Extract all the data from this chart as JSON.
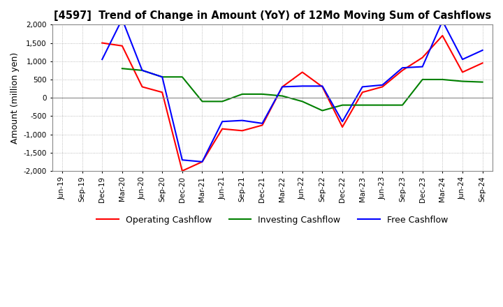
{
  "title": "[4597]  Trend of Change in Amount (YoY) of 12Mo Moving Sum of Cashflows",
  "ylabel": "Amount (million yen)",
  "ylim": [
    -2000,
    2000
  ],
  "yticks": [
    -2000,
    -1500,
    -1000,
    -500,
    0,
    500,
    1000,
    1500,
    2000
  ],
  "x_labels": [
    "Jun-19",
    "Sep-19",
    "Dec-19",
    "Mar-20",
    "Jun-20",
    "Sep-20",
    "Dec-20",
    "Mar-21",
    "Jun-21",
    "Sep-21",
    "Dec-21",
    "Mar-22",
    "Jun-22",
    "Sep-22",
    "Dec-22",
    "Mar-23",
    "Jun-23",
    "Sep-23",
    "Dec-23",
    "Mar-24",
    "Jun-24",
    "Sep-24"
  ],
  "operating": [
    null,
    null,
    1500,
    1420,
    300,
    150,
    -2000,
    -1750,
    -850,
    -900,
    -750,
    300,
    700,
    300,
    -800,
    150,
    300,
    750,
    1100,
    1700,
    700,
    950
  ],
  "investing": [
    null,
    null,
    null,
    800,
    750,
    570,
    570,
    -100,
    -100,
    100,
    100,
    50,
    -100,
    -350,
    -200,
    -200,
    -200,
    -200,
    500,
    500,
    450,
    430
  ],
  "free_cashflow": [
    null,
    null,
    1050,
    2150,
    750,
    570,
    -1700,
    -1750,
    -650,
    -620,
    -700,
    300,
    320,
    320,
    -650,
    300,
    350,
    820,
    850,
    2100,
    1050,
    1300
  ],
  "op_color": "#ff0000",
  "inv_color": "#008000",
  "fcf_color": "#0000ff",
  "bg_color": "#ffffff",
  "grid_color": "#aaaaaa"
}
